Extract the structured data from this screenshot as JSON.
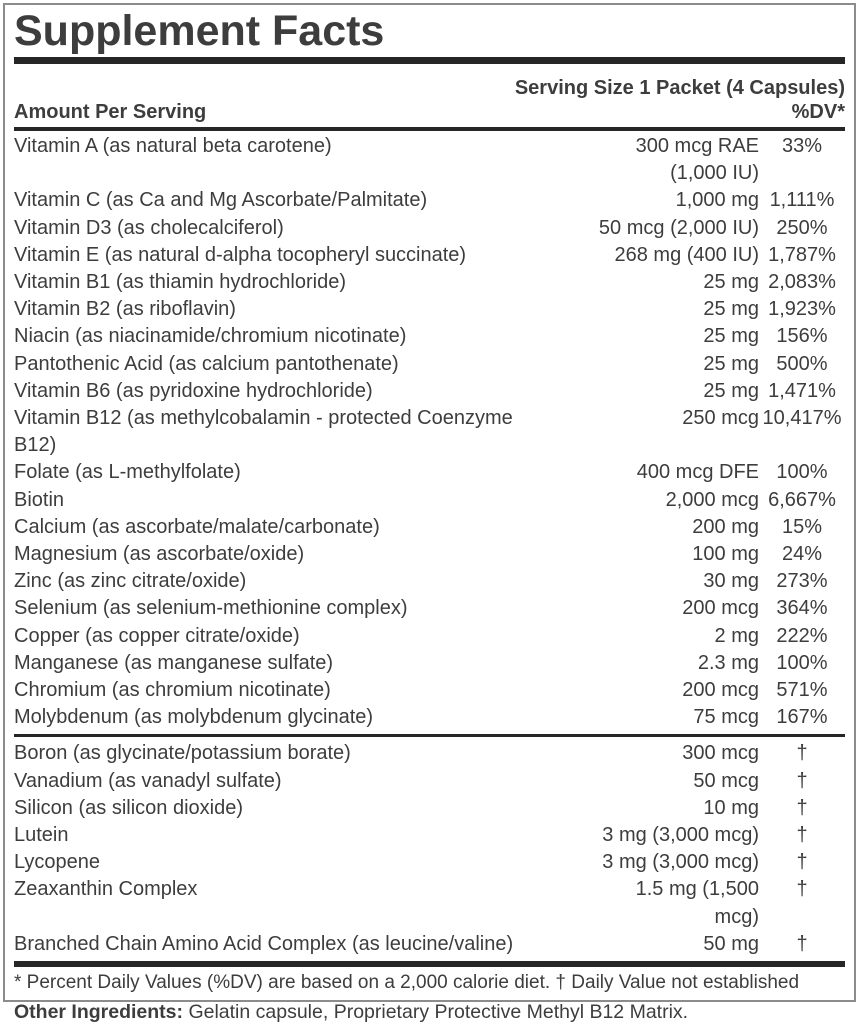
{
  "label": {
    "title": "Supplement Facts",
    "serving_size": "Serving Size 1 Packet (4 Capsules)",
    "amount_header": "Amount Per Serving",
    "dv_header": "%DV*",
    "sections": [
      {
        "rows": [
          {
            "name": "Vitamin A (as natural beta carotene)",
            "amount": "300 mcg RAE\n(1,000 IU)",
            "dv": "33%"
          },
          {
            "name": "Vitamin C (as Ca and Mg Ascorbate/Palmitate)",
            "amount": "1,000 mg",
            "dv": "1,111%"
          },
          {
            "name": "Vitamin D3 (as cholecalciferol)",
            "amount": "50 mcg (2,000 IU)",
            "dv": "250%"
          },
          {
            "name": "Vitamin E (as natural d-alpha tocopheryl succinate)",
            "amount": "268 mg (400 IU)",
            "dv": "1,787%"
          },
          {
            "name": "Vitamin B1 (as thiamin hydrochloride)",
            "amount": "25 mg",
            "dv": "2,083%"
          },
          {
            "name": "Vitamin B2 (as riboflavin)",
            "amount": "25 mg",
            "dv": "1,923%"
          },
          {
            "name": "Niacin (as niacinamide/chromium nicotinate)",
            "amount": "25 mg",
            "dv": "156%"
          },
          {
            "name": "Pantothenic Acid (as calcium pantothenate)",
            "amount": "25 mg",
            "dv": "500%"
          },
          {
            "name": "Vitamin B6 (as pyridoxine hydrochloride)",
            "amount": "25 mg",
            "dv": "1,471%"
          },
          {
            "name": "Vitamin B12 (as methylcobalamin - protected Coenzyme\nB12)",
            "amount": "250 mcg",
            "dv": "10,417%"
          },
          {
            "name": "Folate (as L-methylfolate)",
            "amount": "400 mcg DFE",
            "dv": "100%"
          },
          {
            "name": "Biotin",
            "amount": "2,000 mcg",
            "dv": "6,667%"
          },
          {
            "name": "Calcium (as ascorbate/malate/carbonate)",
            "amount": "200 mg",
            "dv": "15%"
          },
          {
            "name": "Magnesium (as ascorbate/oxide)",
            "amount": "100 mg",
            "dv": "24%"
          },
          {
            "name": "Zinc (as zinc citrate/oxide)",
            "amount": "30 mg",
            "dv": "273%"
          },
          {
            "name": "Selenium (as selenium-methionine complex)",
            "amount": "200 mcg",
            "dv": "364%"
          },
          {
            "name": "Copper (as copper citrate/oxide)",
            "amount": "2 mg",
            "dv": "222%"
          },
          {
            "name": "Manganese (as manganese sulfate)",
            "amount": "2.3 mg",
            "dv": "100%"
          },
          {
            "name": "Chromium (as chromium nicotinate)",
            "amount": "200 mcg",
            "dv": "571%"
          },
          {
            "name": "Molybdenum (as molybdenum glycinate)",
            "amount": "75 mcg",
            "dv": "167%"
          }
        ]
      },
      {
        "rows": [
          {
            "name": "Boron (as glycinate/potassium borate)",
            "amount": "300 mcg",
            "dv": "†"
          },
          {
            "name": "Vanadium (as vanadyl sulfate)",
            "amount": "50 mcg",
            "dv": "†"
          },
          {
            "name": "Silicon (as silicon dioxide)",
            "amount": "10 mg",
            "dv": "†"
          },
          {
            "name": "Lutein",
            "amount": "3 mg (3,000 mcg)",
            "dv": "†"
          },
          {
            "name": "Lycopene",
            "amount": "3 mg (3,000 mcg)",
            "dv": "†"
          },
          {
            "name": "Zeaxanthin Complex",
            "amount": "1.5 mg (1,500\nmcg)",
            "dv": "†"
          },
          {
            "name": "Branched Chain Amino Acid Complex (as leucine/valine)",
            "amount": "50 mg",
            "dv": "†"
          }
        ]
      }
    ],
    "footnote": "* Percent Daily Values (%DV) are based on a 2,000 calorie diet. † Daily Value not established"
  },
  "other_ingredients": {
    "label": "Other Ingredients:",
    "text": " Gelatin capsule, Proprietary Protective Methyl B12 Matrix."
  },
  "colors": {
    "text": "#3d3d3d",
    "rule_dark": "#262626",
    "border": "#8c8c8c",
    "background": "#ffffff"
  }
}
